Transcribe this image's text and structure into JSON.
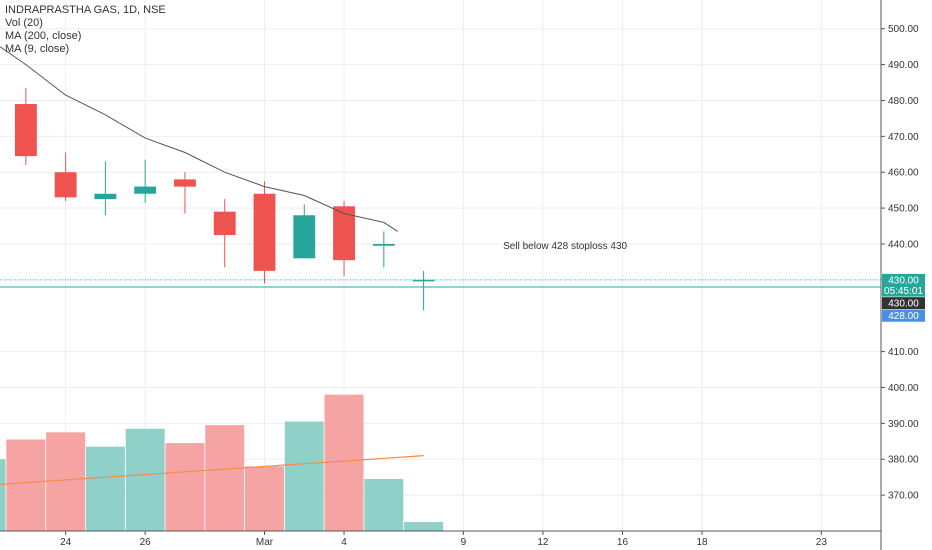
{
  "legend": {
    "title": "INDRAPRASTHA GAS, 1D, NSE",
    "vol": "Vol (20)",
    "ma200": "MA (200, close)",
    "ma9": "MA (9, close)"
  },
  "colors": {
    "up": "#26a69a",
    "down": "#ef5350",
    "vol_up": "#8fd0c9",
    "vol_down": "#f5a3a3",
    "ma9": "#555555",
    "vol_ma": "#f58c4a",
    "line_cyan": "#26a6a6",
    "tag_teal": "#26a69a",
    "tag_dark": "#333333",
    "tag_blue": "#4a90e2",
    "grid": "#eeeeee"
  },
  "chart_data": {
    "type": "candlestick",
    "title": "INDRAPRASTHA GAS, 1D, NSE",
    "price_axis": {
      "ticks": [
        "500.00",
        "490.00",
        "480.00",
        "470.00",
        "460.00",
        "450.00",
        "440.00",
        "410.00",
        "400.00",
        "390.00",
        "380.00",
        "370.00"
      ],
      "ylim": [
        360,
        508
      ]
    },
    "x_axis": {
      "ticks": [
        {
          "label": "24",
          "index": 1
        },
        {
          "label": "26",
          "index": 3
        },
        {
          "label": "Mar",
          "index": 6
        },
        {
          "label": "4",
          "index": 8
        },
        {
          "label": "9",
          "index": 11
        },
        {
          "label": "12",
          "index": 13
        },
        {
          "label": "16",
          "index": 15
        },
        {
          "label": "18",
          "index": 17
        },
        {
          "label": "23",
          "index": 20
        }
      ],
      "xlim": [
        -0.65,
        21.5
      ]
    },
    "candles": [
      {
        "i": -1,
        "open": 475,
        "close": 478,
        "high": 479,
        "low": 475
      },
      {
        "i": 0,
        "open": 479,
        "close": 464.5,
        "high": 483.5,
        "low": 462
      },
      {
        "i": 1,
        "open": 460,
        "close": 453,
        "high": 465.5,
        "low": 452
      },
      {
        "i": 2,
        "open": 452.5,
        "close": 454,
        "high": 463,
        "low": 448
      },
      {
        "i": 3,
        "open": 454,
        "close": 456,
        "high": 463.5,
        "low": 451.5
      },
      {
        "i": 4,
        "open": 458,
        "close": 456,
        "high": 460,
        "low": 448.5
      },
      {
        "i": 5,
        "open": 449,
        "close": 442.5,
        "high": 452.5,
        "low": 433.5
      },
      {
        "i": 6,
        "open": 454,
        "close": 432.5,
        "high": 457.5,
        "low": 429
      },
      {
        "i": 7,
        "open": 436,
        "close": 448,
        "high": 451,
        "low": 436
      },
      {
        "i": 8,
        "open": 450.5,
        "close": 435.5,
        "high": 452,
        "low": 431
      },
      {
        "i": 9,
        "open": 439.5,
        "close": 440,
        "high": 443.5,
        "low": 433.5
      },
      {
        "i": 10,
        "open": 430,
        "close": 430,
        "high": 432.5,
        "low": 421.5
      }
    ],
    "volume": {
      "ma_series": "Vol (20)",
      "ma_start": 373,
      "ma_end": 381,
      "bars": [
        {
          "i": -1,
          "value": 380,
          "dir": "up"
        },
        {
          "i": 0,
          "value": 385.5,
          "dir": "down"
        },
        {
          "i": 1,
          "value": 387.5,
          "dir": "down"
        },
        {
          "i": 2,
          "value": 383.5,
          "dir": "up"
        },
        {
          "i": 3,
          "value": 388.5,
          "dir": "up"
        },
        {
          "i": 4,
          "value": 384.5,
          "dir": "down"
        },
        {
          "i": 5,
          "value": 389.5,
          "dir": "down"
        },
        {
          "i": 6,
          "value": 378,
          "dir": "down"
        },
        {
          "i": 7,
          "value": 390.5,
          "dir": "up"
        },
        {
          "i": 8,
          "value": 398,
          "dir": "down"
        },
        {
          "i": 9,
          "value": 374.5,
          "dir": "up"
        },
        {
          "i": 10,
          "value": 362.5,
          "dir": "up"
        }
      ]
    },
    "ma9": {
      "name": "MA (9, close)",
      "points": [
        {
          "i": -0.65,
          "value": 495
        },
        {
          "i": 0,
          "value": 490
        },
        {
          "i": 1,
          "value": 481.5
        },
        {
          "i": 2,
          "value": 476
        },
        {
          "i": 3,
          "value": 469.5
        },
        {
          "i": 4,
          "value": 465.5
        },
        {
          "i": 5,
          "value": 460
        },
        {
          "i": 6,
          "value": 456
        },
        {
          "i": 7,
          "value": 453.5
        },
        {
          "i": 8,
          "value": 448.5
        },
        {
          "i": 9,
          "value": 446
        },
        {
          "i": 9.35,
          "value": 443.5
        }
      ]
    },
    "horizontal_lines": [
      {
        "value": 430,
        "style": "dotted"
      },
      {
        "value": 428,
        "style": "solid"
      }
    ],
    "price_tags": [
      {
        "label": "430.00",
        "value": 430,
        "color": "teal"
      },
      {
        "label": "05:45:01",
        "value": 427,
        "color": "teal"
      },
      {
        "label": "430.00",
        "value": 423.5,
        "color": "dark"
      },
      {
        "label": "428.00",
        "value": 420,
        "color": "blue"
      }
    ],
    "annotation": {
      "text": "Sell below 428 stoploss 430",
      "i": 12,
      "value": 439.5
    },
    "grid": true
  }
}
